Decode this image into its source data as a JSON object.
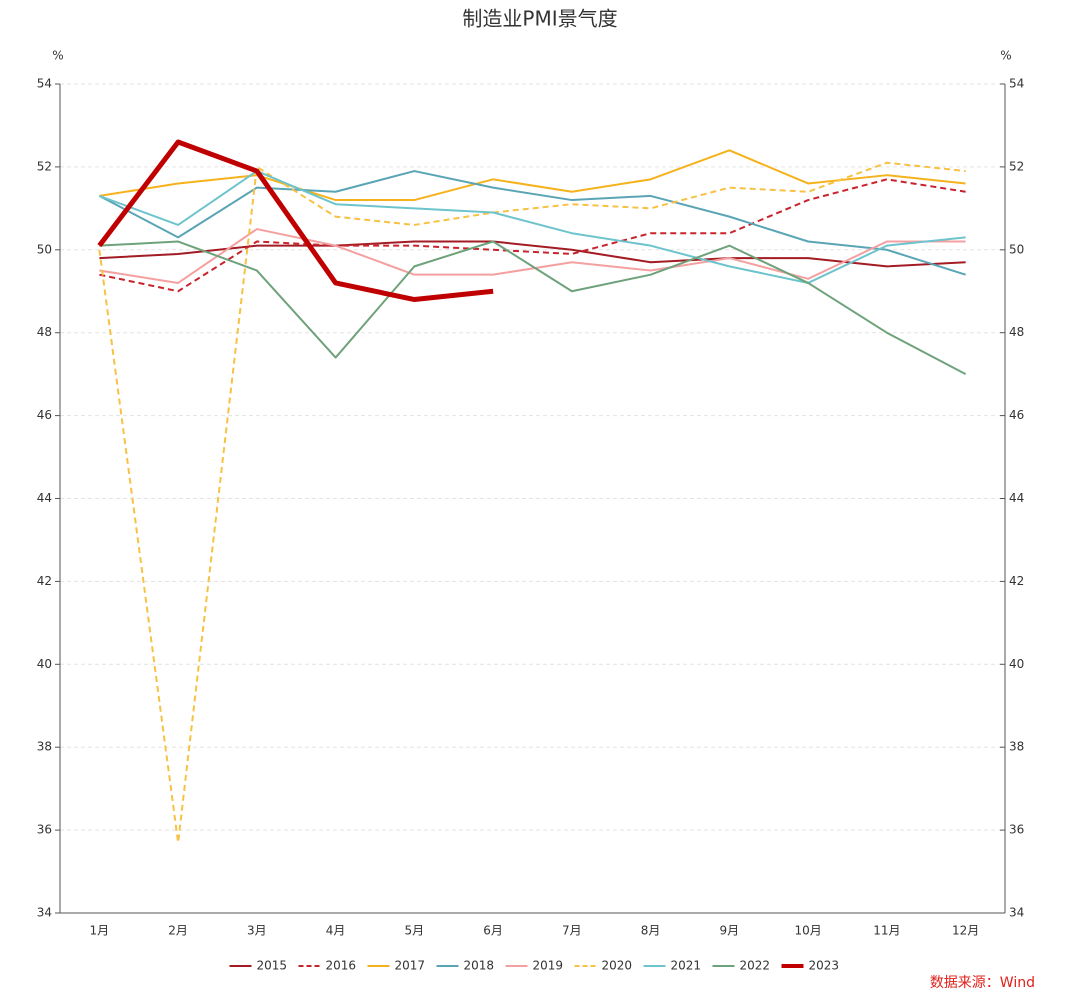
{
  "chart_data": {
    "type": "line",
    "title": "制造业PMI景气度",
    "y_unit": "%",
    "y2_unit": "%",
    "categories": [
      "1月",
      "2月",
      "3月",
      "4月",
      "5月",
      "6月",
      "7月",
      "8月",
      "9月",
      "10月",
      "11月",
      "12月"
    ],
    "series": [
      {
        "name": "2015",
        "color": "#a31b23",
        "dash": false,
        "width": 2,
        "values": [
          49.8,
          49.9,
          50.1,
          50.1,
          50.2,
          50.2,
          50.0,
          49.7,
          49.8,
          49.8,
          49.6,
          49.7
        ]
      },
      {
        "name": "2016",
        "color": "#c8232c",
        "dash": true,
        "width": 2,
        "values": [
          49.4,
          49.0,
          50.2,
          50.1,
          50.1,
          50.0,
          49.9,
          50.4,
          50.4,
          51.2,
          51.7,
          51.4
        ]
      },
      {
        "name": "2017",
        "color": "#f5b21c",
        "dash": false,
        "width": 2,
        "values": [
          51.3,
          51.6,
          51.8,
          51.2,
          51.2,
          51.7,
          51.4,
          51.7,
          52.4,
          51.6,
          51.8,
          51.6
        ]
      },
      {
        "name": "2018",
        "color": "#5aa5b5",
        "dash": false,
        "width": 2,
        "values": [
          51.3,
          50.3,
          51.5,
          51.4,
          51.9,
          51.5,
          51.2,
          51.3,
          50.8,
          50.2,
          50.0,
          49.4
        ]
      },
      {
        "name": "2019",
        "color": "#f4a0a0",
        "dash": false,
        "width": 2,
        "values": [
          49.5,
          49.2,
          50.5,
          50.1,
          49.4,
          49.4,
          49.7,
          49.5,
          49.8,
          49.3,
          50.2,
          50.2
        ]
      },
      {
        "name": "2020",
        "color": "#f7c244",
        "dash": true,
        "width": 2,
        "values": [
          50.0,
          35.7,
          52.0,
          50.8,
          50.6,
          50.9,
          51.1,
          51.0,
          51.5,
          51.4,
          52.1,
          51.9
        ]
      },
      {
        "name": "2021",
        "color": "#6dc4cc",
        "dash": false,
        "width": 2,
        "values": [
          51.3,
          50.6,
          51.9,
          51.1,
          51.0,
          50.9,
          50.4,
          50.1,
          49.6,
          49.2,
          50.1,
          50.3
        ]
      },
      {
        "name": "2022",
        "color": "#6ea27a",
        "dash": false,
        "width": 2,
        "values": [
          50.1,
          50.2,
          49.5,
          47.4,
          49.6,
          50.2,
          49.0,
          49.4,
          50.1,
          49.2,
          48.0,
          47.0
        ]
      },
      {
        "name": "2023",
        "color": "#c00000",
        "dash": false,
        "width": 5,
        "values": [
          50.1,
          52.6,
          51.9,
          49.2,
          48.8,
          49.0,
          null,
          null,
          null,
          null,
          null,
          null
        ]
      }
    ],
    "ylim": [
      34,
      54
    ],
    "yticks": [
      34,
      36,
      38,
      40,
      42,
      44,
      46,
      48,
      50,
      52,
      54
    ],
    "y2lim": [
      34,
      54
    ],
    "y2ticks": [
      34,
      36,
      38,
      40,
      42,
      44,
      46,
      48,
      50,
      52,
      54
    ],
    "grid": true,
    "legend": "bottom",
    "source": "数据来源：Wind"
  }
}
